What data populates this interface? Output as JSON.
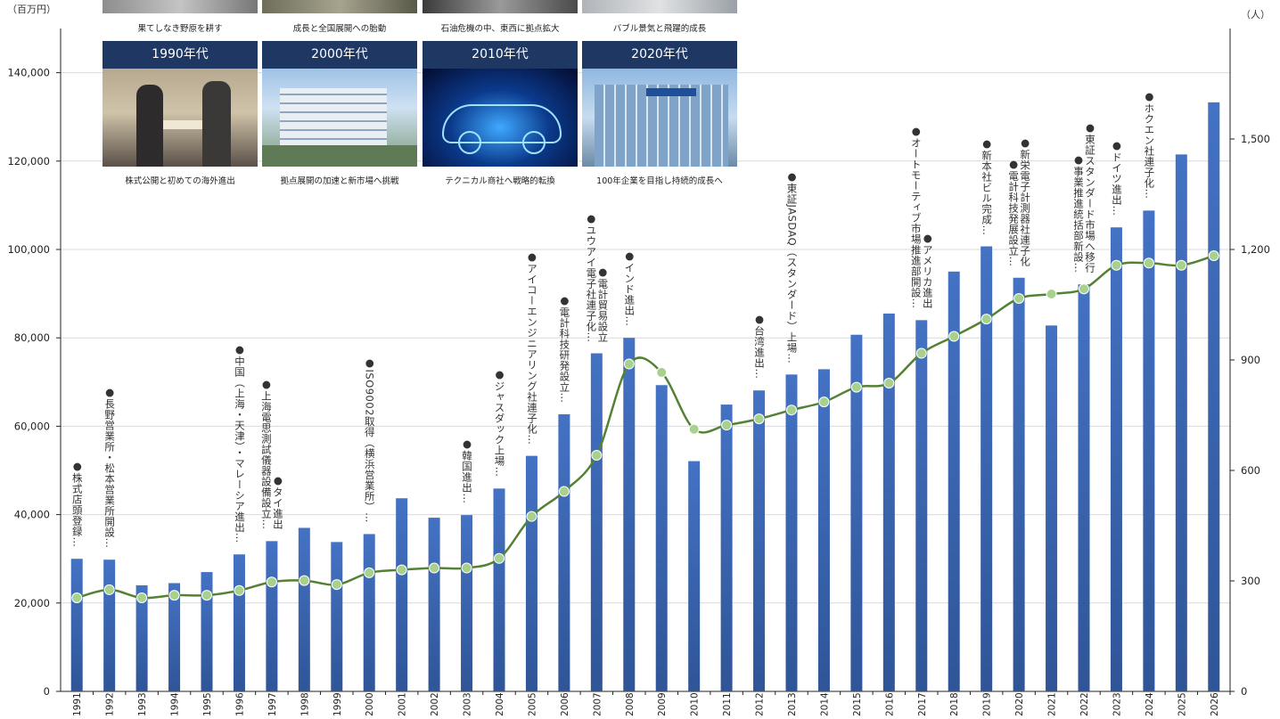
{
  "units": {
    "left": "（百万円）",
    "right": "（人）"
  },
  "top_captions": [
    "果てしなき野原を耕す",
    "成長と全国展開への胎動",
    "石油危機の中、東西に拠点拡大",
    "バブル景気と飛躍的成長"
  ],
  "eras": [
    {
      "header": "1990年代",
      "caption": "株式公開と初めての海外進出"
    },
    {
      "header": "2000年代",
      "caption": "拠点展開の加速と新市場へ挑戦"
    },
    {
      "header": "2010年代",
      "caption": "テクニカル商社へ戦略的転換"
    },
    {
      "header": "2020年代",
      "caption": "100年企業を目指し持続的成長へ"
    }
  ],
  "colors": {
    "bar_top": "#4472c4",
    "bar_bottom": "#2f5597",
    "line": "#548235",
    "marker": "#a9d18e",
    "era_header": "#1e3763",
    "grid": "#d9d9d9"
  },
  "chart_data": {
    "type": "bar",
    "categories": [
      "1991",
      "1992",
      "1993",
      "1994",
      "1995",
      "1996",
      "1997",
      "1998",
      "1999",
      "2000",
      "2001",
      "2002",
      "2003",
      "2004",
      "2005",
      "2006",
      "2007",
      "2008",
      "2009",
      "2010",
      "2011",
      "2012",
      "2013",
      "2014",
      "2015",
      "2016",
      "2017",
      "2018",
      "2019",
      "2020",
      "2021",
      "2022",
      "2023",
      "2024",
      "2025",
      "2026"
    ],
    "series": [
      {
        "values": [
          30000,
          29800,
          24000,
          24500,
          27000,
          31000,
          34000,
          37000,
          33800,
          35600,
          43700,
          39300,
          39900,
          45900,
          53300,
          62700,
          76500,
          80000,
          69300,
          52100,
          64900,
          68100,
          71700,
          72900,
          80700,
          85500,
          84000,
          95000,
          100700,
          93600,
          82800,
          92100,
          105000,
          108800,
          121500,
          133300
        ]
      },
      {
        "values": [
          254,
          276,
          254,
          261,
          261,
          274,
          297,
          301,
          290,
          322,
          330,
          335,
          335,
          361,
          475,
          543,
          641,
          889,
          866,
          712,
          723,
          740,
          764,
          786,
          826,
          837,
          918,
          964,
          1011,
          1067,
          1079,
          1093,
          1157,
          1163,
          1157,
          1183
        ]
      }
    ],
    "ylim": [
      0,
      150000
    ],
    "y2lim": [
      0,
      1800
    ],
    "yticks": [
      "0",
      "20,000",
      "40,000",
      "60,000",
      "80,000",
      "100,000",
      "120,000",
      "140,000"
    ],
    "y2ticks": [
      "0",
      "300",
      "600",
      "900",
      "1,200",
      "1,500"
    ],
    "annotations": [
      {
        "year": "1991",
        "lines": [
          "●株式店頭登録…"
        ]
      },
      {
        "year": "1992",
        "lines": [
          "●長野営業所・松本営業所開設…"
        ]
      },
      {
        "year": "1996",
        "lines": [
          "●中国（上海・天津）・マレーシア進出…"
        ]
      },
      {
        "year": "1997",
        "lines": [
          "●タイ進出",
          "●上海電思測試儀器設備設立…"
        ]
      },
      {
        "year": "2000",
        "lines": [
          "●ISO9002取得（横浜営業所）…"
        ]
      },
      {
        "year": "2003",
        "lines": [
          "●韓国進出…"
        ]
      },
      {
        "year": "2004",
        "lines": [
          "●ジャスダック上場…"
        ]
      },
      {
        "year": "2005",
        "lines": [
          "●アイコーエンジニアリング社連子化…"
        ]
      },
      {
        "year": "2006",
        "lines": [
          "●電計科技研発設立…"
        ]
      },
      {
        "year": "2007",
        "lines": [
          "●電計貿易設立",
          "●ユウアイ電子社連子化…"
        ]
      },
      {
        "year": "2008",
        "lines": [
          "●インド進出…"
        ]
      },
      {
        "year": "2012",
        "lines": [
          "●台湾進出…"
        ]
      },
      {
        "year": "2013",
        "lines": [
          "●東証JASDAQ（スタンダード）上場…"
        ]
      },
      {
        "year": "2017",
        "lines": [
          "●アメリカ進出",
          "●オートモーティブ市場推進部開設…"
        ]
      },
      {
        "year": "2019",
        "lines": [
          "●新本社ビル完成…"
        ]
      },
      {
        "year": "2020",
        "lines": [
          "●新栄電子計測器社連子化",
          "●電計科技発展設立…"
        ]
      },
      {
        "year": "2022",
        "lines": [
          "●東証スタンダード市場へ移行",
          "●事業推進統括部新設…"
        ]
      },
      {
        "year": "2023",
        "lines": [
          "●ドイツ進出…"
        ]
      },
      {
        "year": "2024",
        "lines": [
          "●ホクエン社連子化…"
        ]
      }
    ]
  }
}
